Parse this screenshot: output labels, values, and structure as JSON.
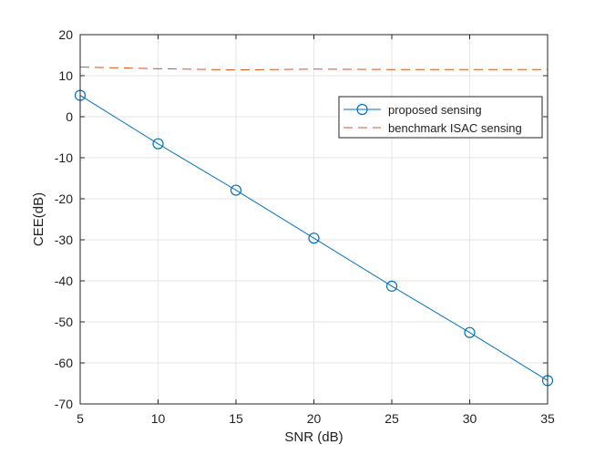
{
  "chart_data": {
    "type": "line",
    "title": "",
    "xlabel": "SNR (dB)",
    "ylabel": "CEE(dB)",
    "xlim": [
      5,
      35
    ],
    "ylim": [
      -70,
      20
    ],
    "xticks": [
      5,
      10,
      15,
      20,
      25,
      30,
      35
    ],
    "yticks": [
      20,
      10,
      0,
      -10,
      -20,
      -30,
      -40,
      -50,
      -60,
      -70
    ],
    "xtick_labels": [
      "5",
      "10",
      "15",
      "20",
      "25",
      "30",
      "35"
    ],
    "ytick_labels": [
      "20",
      "10",
      "0",
      "-10",
      "-20",
      "-30",
      "-40",
      "-50",
      "-60",
      "-70"
    ],
    "grid": true,
    "legend_position": "upper-right",
    "series": [
      {
        "name": "proposed sensing",
        "color": "#0072BD",
        "line_style": "solid",
        "marker": "circle",
        "x": [
          5,
          10,
          15,
          20,
          25,
          30,
          35
        ],
        "y": [
          5.2,
          -6.6,
          -17.9,
          -29.6,
          -41.3,
          -52.6,
          -64.3
        ]
      },
      {
        "name": "benchmark ISAC sensing",
        "color": "#D95319",
        "line_style": "dashed",
        "marker": "none",
        "x": [
          5,
          10,
          15,
          20,
          25,
          30,
          35
        ],
        "y": [
          12.1,
          11.7,
          11.4,
          11.6,
          11.5,
          11.5,
          11.5
        ]
      }
    ]
  }
}
